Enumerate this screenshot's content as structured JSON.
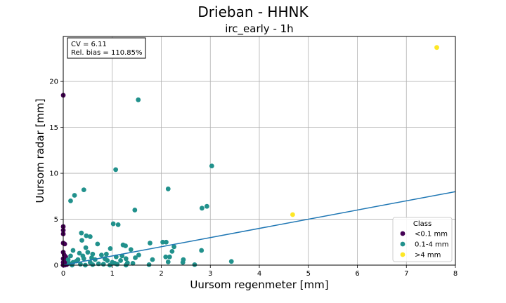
{
  "chart_data": {
    "type": "scatter",
    "suptitle": "Drieban - HHNK",
    "title": "irc_early - 1h",
    "xlabel": "Uursom regenmeter [mm]",
    "ylabel": "Uursom radar [mm]",
    "xlim": [
      0,
      8
    ],
    "ylim": [
      0,
      24.9
    ],
    "xticks": [
      0,
      1,
      2,
      3,
      4,
      5,
      6,
      7,
      8
    ],
    "yticks": [
      0,
      5,
      10,
      15,
      20
    ],
    "grid": true,
    "stats": {
      "cv": "CV = 6.11",
      "bias": "Rel. bias = 110.85%"
    },
    "legend": {
      "title": "Class",
      "position": "lower-right",
      "entries": [
        {
          "label": "<0.1 mm",
          "color": "#440154"
        },
        {
          "label": "0.1-4 mm",
          "color": "#21918c"
        },
        {
          "label": ">4 mm",
          "color": "#fde725"
        }
      ]
    },
    "fit_line": {
      "color": "#1f77b4",
      "points": [
        [
          0,
          0.0
        ],
        [
          8,
          8.0
        ]
      ]
    },
    "series": [
      {
        "name": "<0.1 mm",
        "color": "#440154",
        "points": [
          [
            0.0,
            18.5
          ],
          [
            0.0,
            4.2
          ],
          [
            0.0,
            3.8
          ],
          [
            0.0,
            3.4
          ],
          [
            0.0,
            2.4
          ],
          [
            0.03,
            2.3
          ],
          [
            0.0,
            1.4
          ],
          [
            0.02,
            1.1
          ],
          [
            0.05,
            0.9
          ],
          [
            0.0,
            0.7
          ],
          [
            0.04,
            0.5
          ],
          [
            0.08,
            0.4
          ],
          [
            0.0,
            0.3
          ],
          [
            0.02,
            0.2
          ],
          [
            0.06,
            0.1
          ],
          [
            0.0,
            0.0
          ],
          [
            0.03,
            0.0
          ],
          [
            0.07,
            0.05
          ]
        ]
      },
      {
        "name": "0.1-4 mm",
        "color": "#21918c",
        "points": [
          [
            1.53,
            18.0
          ],
          [
            1.07,
            10.4
          ],
          [
            3.03,
            10.8
          ],
          [
            0.42,
            8.2
          ],
          [
            2.14,
            8.3
          ],
          [
            0.23,
            7.6
          ],
          [
            0.15,
            7.0
          ],
          [
            2.93,
            6.4
          ],
          [
            2.83,
            6.2
          ],
          [
            1.46,
            6.0
          ],
          [
            1.02,
            4.5
          ],
          [
            1.12,
            4.4
          ],
          [
            0.37,
            3.5
          ],
          [
            0.47,
            3.2
          ],
          [
            0.55,
            3.1
          ],
          [
            0.38,
            2.7
          ],
          [
            2.03,
            2.5
          ],
          [
            2.1,
            2.5
          ],
          [
            1.77,
            2.4
          ],
          [
            0.7,
            2.3
          ],
          [
            1.22,
            2.2
          ],
          [
            1.27,
            2.1
          ],
          [
            2.26,
            2.0
          ],
          [
            0.46,
            1.9
          ],
          [
            0.96,
            1.8
          ],
          [
            1.38,
            1.7
          ],
          [
            0.2,
            1.6
          ],
          [
            2.82,
            1.6
          ],
          [
            2.22,
            1.5
          ],
          [
            0.33,
            1.3
          ],
          [
            0.5,
            1.4
          ],
          [
            0.6,
            1.2
          ],
          [
            0.78,
            1.1
          ],
          [
            0.88,
            1.2
          ],
          [
            1.54,
            1.1
          ],
          [
            1.2,
            1.0
          ],
          [
            2.17,
            0.9
          ],
          [
            2.09,
            0.9
          ],
          [
            0.15,
            1.0
          ],
          [
            1.08,
            0.9
          ],
          [
            1.47,
            0.8
          ],
          [
            1.28,
            0.7
          ],
          [
            0.42,
            0.7
          ],
          [
            0.65,
            0.6
          ],
          [
            1.82,
            0.6
          ],
          [
            0.3,
            0.6
          ],
          [
            2.45,
            0.6
          ],
          [
            1.17,
            0.5
          ],
          [
            0.9,
            0.5
          ],
          [
            3.43,
            0.4
          ],
          [
            2.14,
            0.35
          ],
          [
            2.44,
            0.3
          ],
          [
            0.55,
            0.3
          ],
          [
            1.0,
            0.3
          ],
          [
            1.31,
            0.25
          ],
          [
            0.12,
            0.2
          ],
          [
            0.2,
            0.3
          ],
          [
            0.35,
            0.1
          ],
          [
            0.72,
            0.15
          ],
          [
            0.82,
            0.1
          ],
          [
            1.1,
            0.1
          ],
          [
            1.75,
            0.05
          ],
          [
            2.68,
            0.05
          ],
          [
            1.28,
            0.0
          ],
          [
            0.18,
            0.0
          ],
          [
            0.45,
            0.0
          ],
          [
            0.6,
            0.05
          ],
          [
            0.95,
            0.0
          ],
          [
            0.27,
            0.45
          ],
          [
            0.58,
            0.8
          ],
          [
            0.4,
            1.0
          ],
          [
            0.85,
            0.7
          ],
          [
            1.05,
            0.2
          ],
          [
            0.1,
            0.6
          ],
          [
            1.42,
            0.2
          ]
        ]
      },
      {
        "name": ">4 mm",
        "color": "#fde725",
        "points": [
          [
            4.68,
            5.5
          ],
          [
            7.62,
            23.7
          ]
        ]
      }
    ]
  }
}
